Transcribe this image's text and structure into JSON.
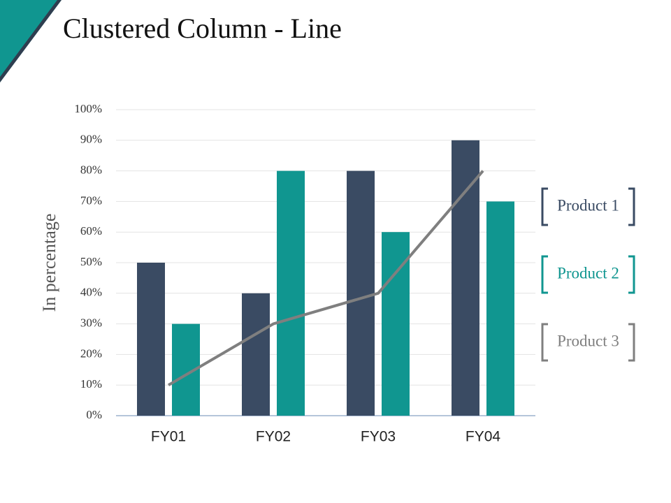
{
  "chart_data": {
    "type": "bar-line",
    "title": "Clustered Column - Line",
    "ylabel": "In percentage",
    "categories": [
      "FY01",
      "FY02",
      "FY03",
      "FY04"
    ],
    "series": [
      {
        "name": "Product 1",
        "type": "bar",
        "color": "#3a4b63",
        "values": [
          50,
          40,
          80,
          90
        ]
      },
      {
        "name": "Product 2",
        "type": "bar",
        "color": "#109690",
        "values": [
          30,
          80,
          60,
          70
        ]
      },
      {
        "name": "Product 3",
        "type": "line",
        "color": "#7f7f7f",
        "values": [
          10,
          30,
          40,
          80
        ]
      }
    ],
    "ylim": [
      0,
      100
    ],
    "yticks": [
      {
        "value": 0,
        "label": "0%"
      },
      {
        "value": 10,
        "label": "10%"
      },
      {
        "value": 20,
        "label": "20%"
      },
      {
        "value": 30,
        "label": "30%"
      },
      {
        "value": 40,
        "label": "40%"
      },
      {
        "value": 50,
        "label": "50%"
      },
      {
        "value": 60,
        "label": "60%"
      },
      {
        "value": 70,
        "label": "70%"
      },
      {
        "value": 80,
        "label": "80%"
      },
      {
        "value": 90,
        "label": "90%"
      },
      {
        "value": 100,
        "label": "100%"
      }
    ],
    "grid": true,
    "legend": "right"
  }
}
